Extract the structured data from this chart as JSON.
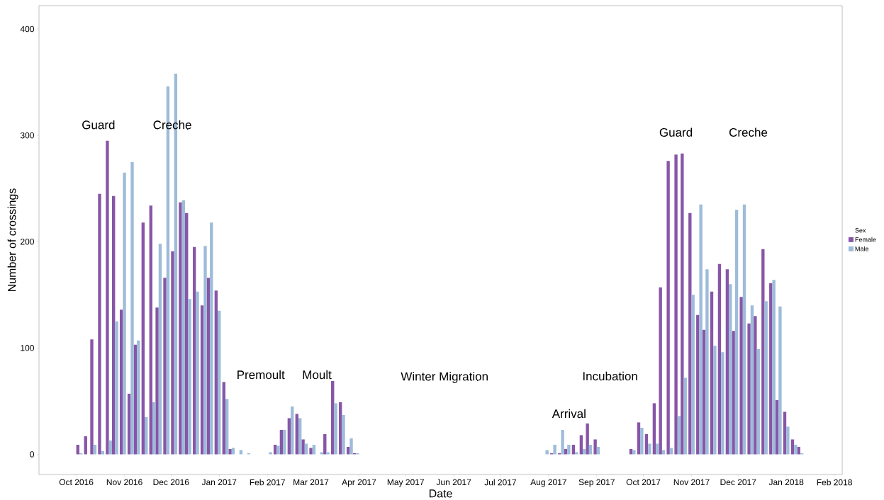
{
  "chart_data": {
    "type": "bar",
    "xlabel": "Date",
    "ylabel": "Number of crossings",
    "legend_title": "Sex",
    "legend": "right",
    "x": [
      "2016-10-03",
      "2016-10-08",
      "2016-10-12",
      "2016-10-17",
      "2016-10-22",
      "2016-10-26",
      "2016-10-31",
      "2016-11-05",
      "2016-11-09",
      "2016-11-14",
      "2016-11-19",
      "2016-11-23",
      "2016-11-28",
      "2016-12-03",
      "2016-12-08",
      "2016-12-12",
      "2016-12-17",
      "2016-12-22",
      "2016-12-26",
      "2016-12-31",
      "2017-01-05",
      "2017-01-09",
      "2017-01-14",
      "2017-01-19",
      "2017-02-02",
      "2017-02-07",
      "2017-02-11",
      "2017-02-16",
      "2017-02-21",
      "2017-02-25",
      "2017-03-02",
      "2017-03-07",
      "2017-03-11",
      "2017-03-16",
      "2017-03-21",
      "2017-03-26",
      "2017-03-30",
      "2017-07-30",
      "2017-08-04",
      "2017-08-09",
      "2017-08-13",
      "2017-08-18",
      "2017-08-23",
      "2017-08-27",
      "2017-09-01",
      "2017-09-24",
      "2017-09-29",
      "2017-10-04",
      "2017-10-09",
      "2017-10-13",
      "2017-10-18",
      "2017-10-23",
      "2017-10-27",
      "2017-11-01",
      "2017-11-06",
      "2017-11-10",
      "2017-11-15",
      "2017-11-20",
      "2017-11-25",
      "2017-11-29",
      "2017-12-04",
      "2017-12-09",
      "2017-12-13",
      "2017-12-18",
      "2017-12-23",
      "2017-12-27",
      "2018-01-01",
      "2018-01-06",
      "2018-01-10"
    ],
    "series": [
      {
        "name": "Female",
        "color": "#8856a7",
        "values": [
          9,
          17,
          108,
          245,
          295,
          243,
          136,
          57,
          103,
          218,
          234,
          138,
          166,
          191,
          237,
          227,
          195,
          140,
          166,
          154,
          68,
          5,
          null,
          null,
          null,
          9,
          23,
          34,
          38,
          14,
          6,
          null,
          19,
          69,
          49,
          7,
          1,
          null,
          1,
          1,
          5,
          9,
          18,
          29,
          14,
          5,
          30,
          19,
          48,
          157,
          276,
          282,
          283,
          227,
          131,
          117,
          153,
          179,
          174,
          116,
          148,
          123,
          130,
          193,
          161,
          51,
          40,
          14,
          7
        ]
      },
      {
        "name": "Male",
        "color": "#9ebcda",
        "values": [
          1,
          null,
          9,
          3,
          13,
          125,
          265,
          275,
          107,
          35,
          49,
          198,
          346,
          358,
          239,
          146,
          153,
          196,
          218,
          135,
          52,
          6,
          4,
          1,
          2,
          8,
          23,
          45,
          34,
          10,
          9,
          2,
          2,
          48,
          37,
          15,
          1,
          4,
          9,
          23,
          9,
          2,
          5,
          9,
          7,
          4,
          25,
          10,
          10,
          4,
          6,
          36,
          72,
          150,
          235,
          174,
          102,
          96,
          160,
          230,
          235,
          140,
          99,
          144,
          164,
          139,
          26,
          9,
          1
        ]
      }
    ],
    "xlim": [
      "2016-09-07",
      "2018-02-06"
    ],
    "xticks": [
      {
        "value": "2016-10-01",
        "label": "Oct 2016"
      },
      {
        "value": "2016-11-01",
        "label": "Nov 2016"
      },
      {
        "value": "2016-12-01",
        "label": "Dec 2016"
      },
      {
        "value": "2017-01-01",
        "label": "Jan 2017"
      },
      {
        "value": "2017-02-01",
        "label": "Feb 2017"
      },
      {
        "value": "2017-03-01",
        "label": "Mar 2017"
      },
      {
        "value": "2017-04-01",
        "label": "Apr 2017"
      },
      {
        "value": "2017-05-01",
        "label": "May 2017"
      },
      {
        "value": "2017-06-01",
        "label": "Jun 2017"
      },
      {
        "value": "2017-07-01",
        "label": "Jul 2017"
      },
      {
        "value": "2017-08-01",
        "label": "Aug 2017"
      },
      {
        "value": "2017-09-01",
        "label": "Sep 2017"
      },
      {
        "value": "2017-10-01",
        "label": "Oct 2017"
      },
      {
        "value": "2017-11-01",
        "label": "Nov 2017"
      },
      {
        "value": "2017-12-01",
        "label": "Dec 2017"
      },
      {
        "value": "2018-01-01",
        "label": "Jan 2018"
      },
      {
        "value": "2018-02-01",
        "label": "Feb 2018"
      }
    ],
    "ylim": [
      -19,
      422
    ],
    "yticks": [
      0,
      100,
      200,
      300,
      400
    ],
    "annotations": [
      "Guard",
      "Creche",
      "Premoult",
      "Moult",
      "Winter Migration",
      "Arrival",
      "Incubation",
      "Guard",
      "Creche"
    ]
  }
}
